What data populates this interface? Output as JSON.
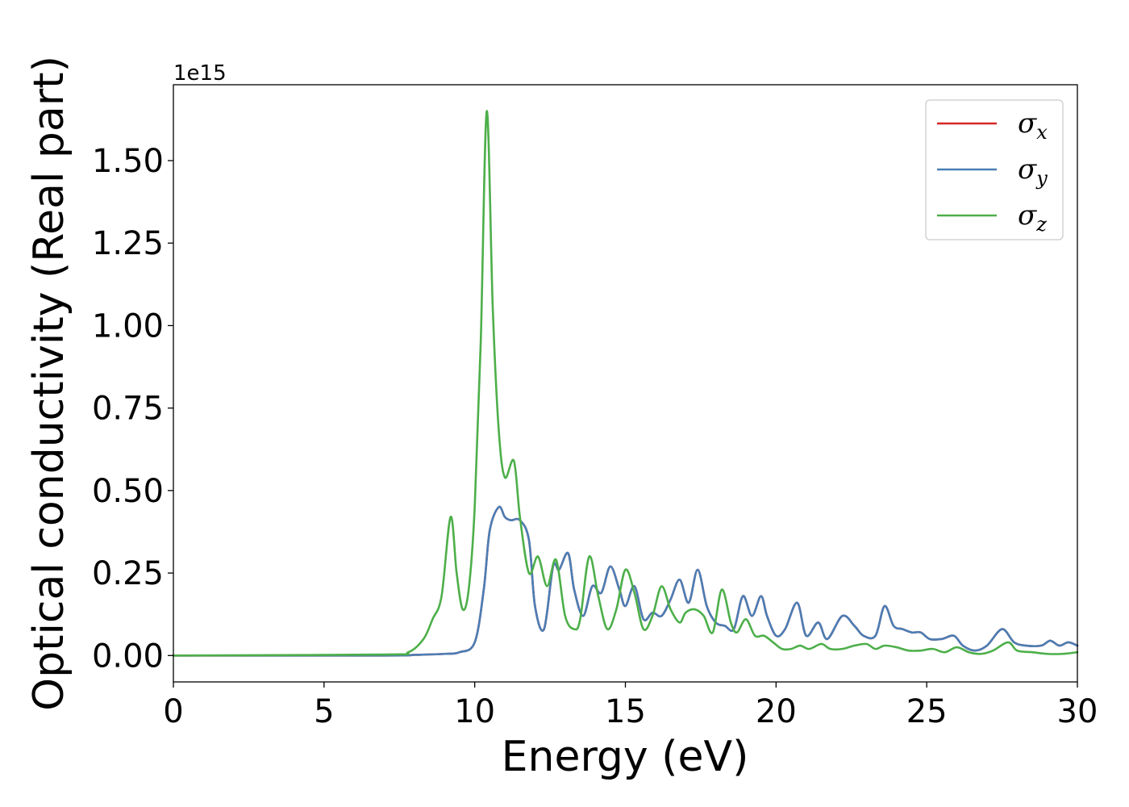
{
  "chart_data": {
    "type": "line",
    "xlabel": "Energy (eV)",
    "ylabel": "Optical conductivity (Real part)",
    "y_offset_text": "1e15",
    "xlim": [
      0,
      30
    ],
    "ylim": [
      -0.08,
      1.73
    ],
    "xticks": [
      0,
      5,
      10,
      15,
      20,
      25,
      30
    ],
    "xtick_labels": [
      "0",
      "5",
      "10",
      "15",
      "20",
      "25",
      "30"
    ],
    "yticks": [
      0.0,
      0.25,
      0.5,
      0.75,
      1.0,
      1.25,
      1.5
    ],
    "ytick_labels": [
      "0.00",
      "0.25",
      "0.50",
      "0.75",
      "1.00",
      "1.25",
      "1.50"
    ],
    "grid": false,
    "legend_position": "top-right",
    "series": [
      {
        "name": "σ_x",
        "legend_base": "σ",
        "legend_sub": "x",
        "color": "#d62728",
        "x": [
          0,
          7,
          8,
          9,
          9.5,
          10,
          10.3,
          10.5,
          10.8,
          11.0,
          11.2,
          11.5,
          11.8,
          12.0,
          12.3,
          12.6,
          12.8,
          13.1,
          13.3,
          13.6,
          13.9,
          14.2,
          14.5,
          14.8,
          15.0,
          15.3,
          15.6,
          15.9,
          16.2,
          16.5,
          16.8,
          17.1,
          17.4,
          17.7,
          18.0,
          18.3,
          18.6,
          18.9,
          19.2,
          19.5,
          19.7,
          20.0,
          20.3,
          20.7,
          21.0,
          21.4,
          21.7,
          22.2,
          22.6,
          22.9,
          23.3,
          23.6,
          23.9,
          24.2,
          24.5,
          24.8,
          25.1,
          25.5,
          25.9,
          26.2,
          26.6,
          27.0,
          27.5,
          27.9,
          28.3,
          28.8,
          29.1,
          29.4,
          29.7,
          30.0
        ],
        "values": [
          0.0,
          0.0,
          0.002,
          0.005,
          0.01,
          0.04,
          0.2,
          0.38,
          0.45,
          0.42,
          0.41,
          0.41,
          0.35,
          0.15,
          0.08,
          0.27,
          0.26,
          0.31,
          0.2,
          0.12,
          0.21,
          0.19,
          0.27,
          0.2,
          0.15,
          0.21,
          0.11,
          0.13,
          0.12,
          0.17,
          0.23,
          0.16,
          0.26,
          0.15,
          0.1,
          0.09,
          0.08,
          0.18,
          0.12,
          0.18,
          0.12,
          0.06,
          0.08,
          0.16,
          0.06,
          0.1,
          0.05,
          0.12,
          0.09,
          0.06,
          0.06,
          0.15,
          0.09,
          0.08,
          0.07,
          0.07,
          0.05,
          0.05,
          0.06,
          0.03,
          0.015,
          0.03,
          0.08,
          0.04,
          0.03,
          0.03,
          0.045,
          0.03,
          0.04,
          0.03
        ]
      },
      {
        "name": "σ_y",
        "legend_base": "σ",
        "legend_sub": "y",
        "color": "#4a7eb5",
        "x": [
          0,
          7,
          8,
          9,
          9.5,
          10,
          10.3,
          10.5,
          10.8,
          11.0,
          11.2,
          11.5,
          11.8,
          12.0,
          12.3,
          12.6,
          12.8,
          13.1,
          13.3,
          13.6,
          13.9,
          14.2,
          14.5,
          14.8,
          15.0,
          15.3,
          15.6,
          15.9,
          16.2,
          16.5,
          16.8,
          17.1,
          17.4,
          17.7,
          18.0,
          18.3,
          18.6,
          18.9,
          19.2,
          19.5,
          19.7,
          20.0,
          20.3,
          20.7,
          21.0,
          21.4,
          21.7,
          22.2,
          22.6,
          22.9,
          23.3,
          23.6,
          23.9,
          24.2,
          24.5,
          24.8,
          25.1,
          25.5,
          25.9,
          26.2,
          26.6,
          27.0,
          27.5,
          27.9,
          28.3,
          28.8,
          29.1,
          29.4,
          29.7,
          30.0
        ],
        "values": [
          0.0,
          0.0,
          0.002,
          0.005,
          0.01,
          0.04,
          0.2,
          0.38,
          0.45,
          0.42,
          0.41,
          0.41,
          0.35,
          0.15,
          0.08,
          0.27,
          0.26,
          0.31,
          0.2,
          0.12,
          0.21,
          0.19,
          0.27,
          0.2,
          0.15,
          0.21,
          0.11,
          0.13,
          0.12,
          0.17,
          0.23,
          0.16,
          0.26,
          0.15,
          0.1,
          0.09,
          0.08,
          0.18,
          0.12,
          0.18,
          0.12,
          0.06,
          0.08,
          0.16,
          0.06,
          0.1,
          0.05,
          0.12,
          0.09,
          0.06,
          0.06,
          0.15,
          0.09,
          0.08,
          0.07,
          0.07,
          0.05,
          0.05,
          0.06,
          0.03,
          0.015,
          0.03,
          0.08,
          0.04,
          0.03,
          0.03,
          0.045,
          0.03,
          0.04,
          0.03
        ]
      },
      {
        "name": "σ_z",
        "legend_base": "σ",
        "legend_sub": "z",
        "color": "#4daf4a",
        "x": [
          0,
          7,
          7.8,
          8.3,
          8.6,
          8.9,
          9.2,
          9.4,
          9.6,
          9.8,
          10.0,
          10.2,
          10.4,
          10.6,
          10.8,
          11.0,
          11.3,
          11.5,
          11.8,
          12.1,
          12.4,
          12.7,
          13.0,
          13.3,
          13.5,
          13.8,
          14.1,
          14.4,
          14.7,
          15.0,
          15.3,
          15.6,
          15.9,
          16.2,
          16.5,
          16.8,
          17.0,
          17.3,
          17.6,
          17.9,
          18.2,
          18.5,
          18.7,
          19.0,
          19.3,
          19.6,
          19.9,
          20.2,
          20.5,
          20.8,
          21.1,
          21.5,
          21.8,
          22.2,
          22.6,
          23.0,
          23.3,
          23.6,
          24.0,
          24.4,
          24.8,
          25.2,
          25.6,
          26.0,
          26.4,
          26.8,
          27.2,
          27.7,
          28.0,
          28.5,
          29.0,
          29.5,
          30.0
        ],
        "values": [
          0.0,
          0.003,
          0.01,
          0.05,
          0.11,
          0.18,
          0.42,
          0.25,
          0.14,
          0.2,
          0.45,
          0.95,
          1.65,
          1.05,
          0.68,
          0.54,
          0.59,
          0.42,
          0.25,
          0.3,
          0.21,
          0.29,
          0.12,
          0.08,
          0.11,
          0.3,
          0.18,
          0.08,
          0.14,
          0.26,
          0.19,
          0.08,
          0.12,
          0.21,
          0.14,
          0.1,
          0.13,
          0.14,
          0.12,
          0.07,
          0.2,
          0.1,
          0.07,
          0.11,
          0.06,
          0.06,
          0.04,
          0.02,
          0.02,
          0.03,
          0.02,
          0.035,
          0.02,
          0.02,
          0.03,
          0.035,
          0.02,
          0.03,
          0.025,
          0.015,
          0.015,
          0.02,
          0.01,
          0.025,
          0.01,
          0.005,
          0.015,
          0.04,
          0.015,
          0.01,
          0.005,
          0.005,
          0.01
        ]
      }
    ]
  }
}
